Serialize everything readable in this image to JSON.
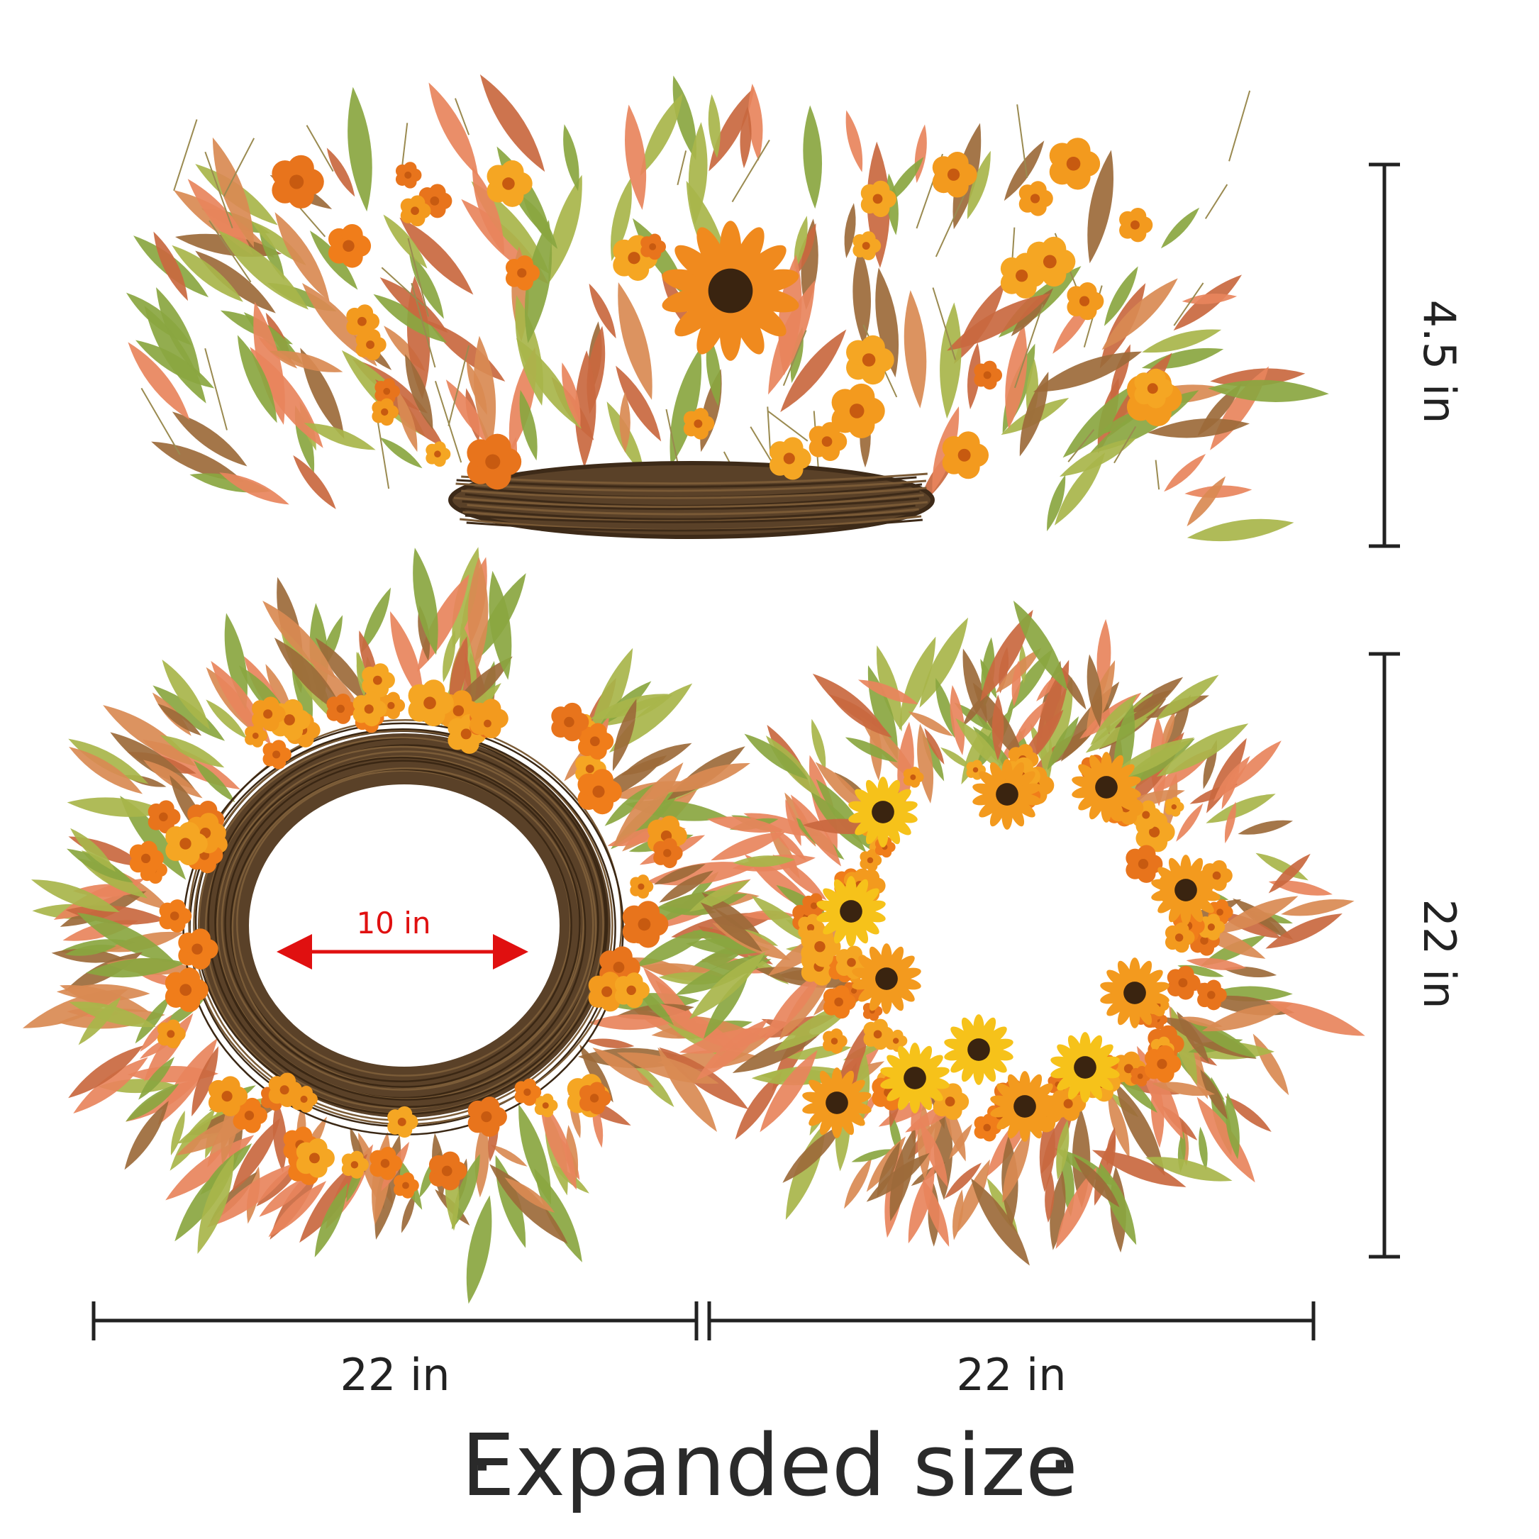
{
  "labels": {
    "side_height": "4.5 in",
    "front_height": "22 in",
    "back_width": "22 in",
    "front_width": "22 in",
    "inner_diameter": "10 in",
    "title": "Expanded size"
  },
  "title_bullet": "·",
  "views": [
    {
      "name": "side-view",
      "depicts": "wreath-side-profile"
    },
    {
      "name": "back-view",
      "depicts": "wreath-back-grapevine"
    },
    {
      "name": "front-view",
      "depicts": "wreath-front-sunflowers"
    }
  ],
  "colors": {
    "dimension_lines": "#222222",
    "inner_arrow": "#e01010",
    "vine": "#5a4128",
    "leaf_green": "#8aa640",
    "leaf_salmon": "#e8845c",
    "flower_orange": "#f39a1e",
    "flower_yellow": "#f6c21a",
    "flower_center": "#3a2410"
  }
}
